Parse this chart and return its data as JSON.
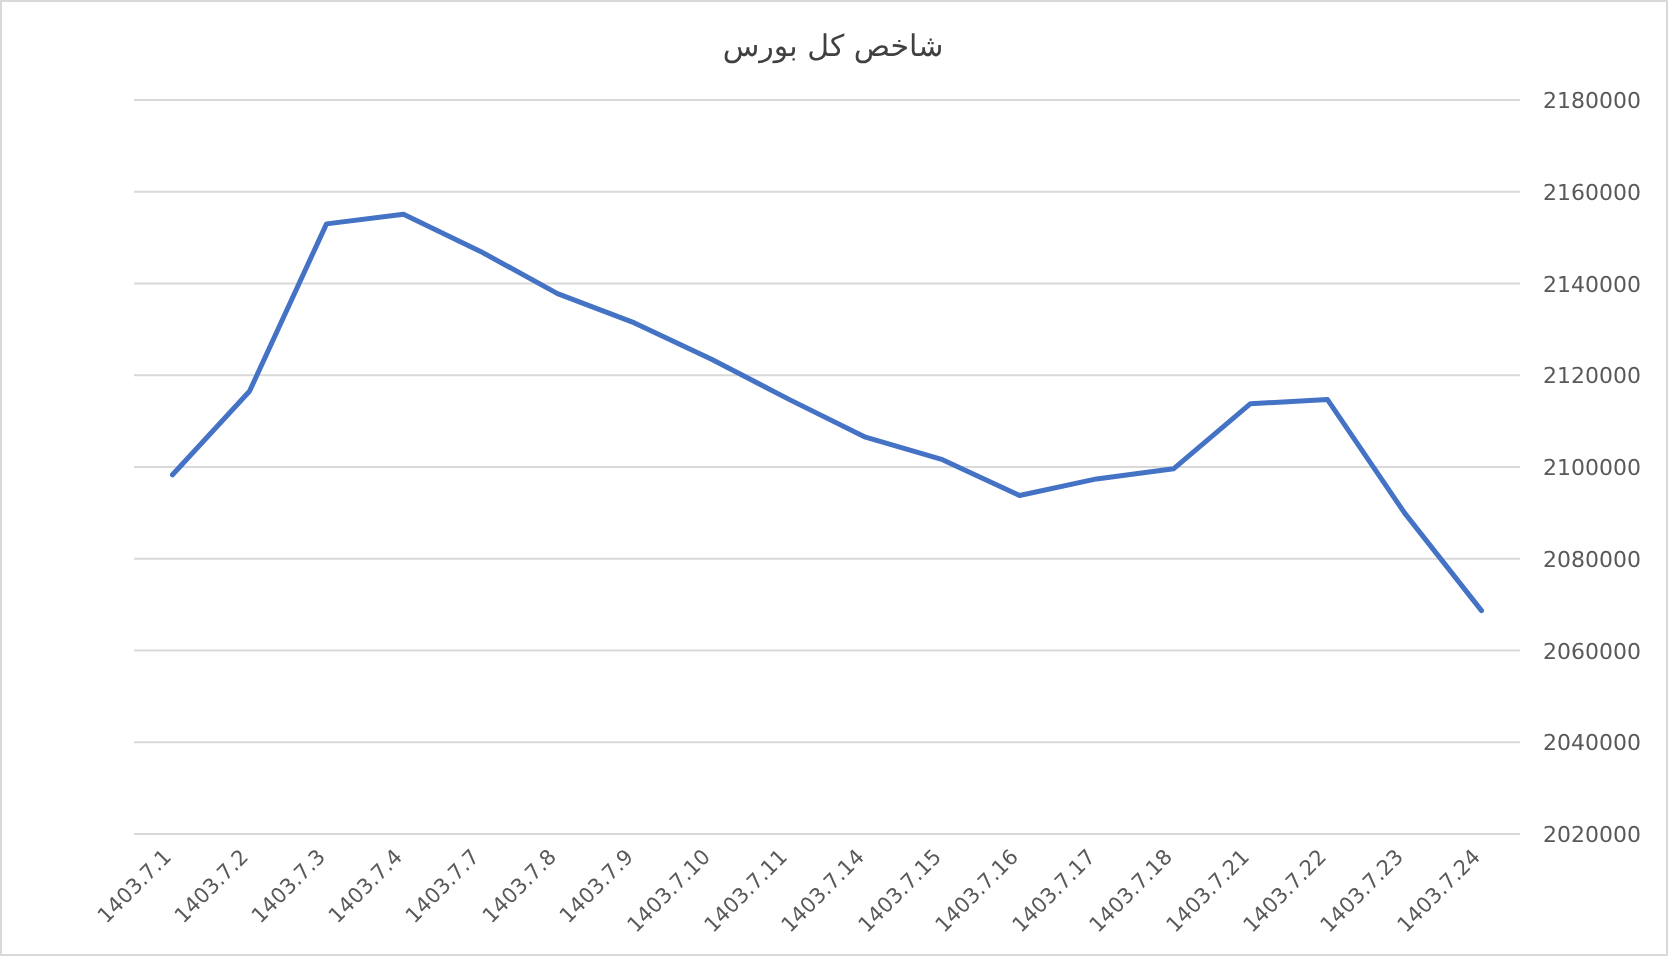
{
  "chart_data": {
    "type": "line",
    "title": "شاخص کل بورس",
    "categories": [
      "1403.7.1",
      "1403.7.2",
      "1403.7.3",
      "1403.7.4",
      "1403.7.7",
      "1403.7.8",
      "1403.7.9",
      "1403.7.10",
      "1403.7.11",
      "1403.7.14",
      "1403.7.15",
      "1403.7.16",
      "1403.7.17",
      "1403.7.18",
      "1403.7.21",
      "1403.7.22",
      "1403.7.23",
      "1403.7.24"
    ],
    "series": [
      {
        "color": "#4472c4",
        "values": [
          2098300,
          2116500,
          2153000,
          2155100,
          2147000,
          2137800,
          2131400,
          2123500,
          2114800,
          2106500,
          2101600,
          2093800,
          2097400,
          2099600,
          2113800,
          2114700,
          2090000,
          2068700
        ]
      }
    ],
    "ylim": [
      2020000,
      2180000
    ],
    "yticks": [
      2020000,
      2040000,
      2060000,
      2080000,
      2100000,
      2120000,
      2140000,
      2160000,
      2180000
    ],
    "grid": "y",
    "marker": "none",
    "line_style": "solid"
  }
}
